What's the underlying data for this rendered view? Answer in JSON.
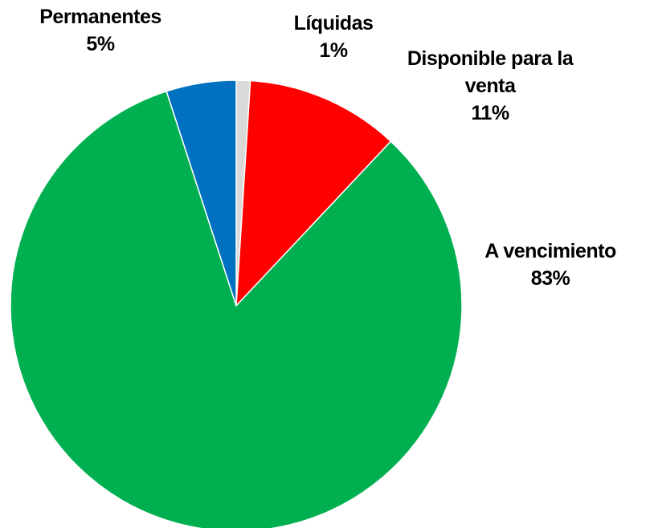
{
  "chart_data": {
    "type": "pie",
    "categories": [
      "Líquidas",
      "Disponible para la venta",
      "A vencimiento",
      "Permanentes"
    ],
    "values": [
      1,
      11,
      83,
      5
    ],
    "value_labels": [
      "1%",
      "11%",
      "83%",
      "5%"
    ],
    "colors": [
      "#d9d9d9",
      "#ff0000",
      "#00b050",
      "#0070c0"
    ]
  }
}
